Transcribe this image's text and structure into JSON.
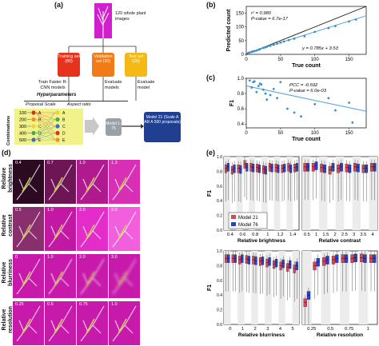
{
  "panels": {
    "a": "(a)",
    "b": "(b)",
    "c": "(c)",
    "d": "(d)",
    "e": "(e)"
  },
  "diagram": {
    "images_text": "120 whole plant images",
    "training": "Training set (80)",
    "validation": "Validation set (20)",
    "test": "Test set (20)",
    "train_label": "Train Faster R-CNN models",
    "evaluate_models": "Evaluate models",
    "evaluate_model": "Evaluate model",
    "hyperparameters": "Hyperparameters",
    "proposal_header": "Proposal  Scale",
    "aspect_header": "Aspect ratio",
    "combinations": "Combinations",
    "proposals": [
      "100",
      "200",
      "300",
      "400",
      "500"
    ],
    "letters": [
      "A",
      "B",
      "C",
      "D",
      "E"
    ],
    "model_box": "Model 1-75",
    "final_model_box": "Model 21 (Scale A AR A 500 proposals)",
    "colors": {
      "training": "#e8331c",
      "validation": "#f07b17",
      "test": "#f5b915",
      "model": "#9aa0a8",
      "final": "#1f3f91",
      "combo_bg": "#f2f28a"
    }
  },
  "chart_b": {
    "xlabel": "True count",
    "ylabel": "Predicted count",
    "annot": [
      "r² = 0.980",
      "P-value = 6.7e-17",
      "y = 0.785x + 3.53"
    ],
    "xticks": [
      "0",
      "50",
      "100",
      "150"
    ],
    "yticks": [
      "0",
      "50",
      "100",
      "150"
    ]
  },
  "chart_c": {
    "xlabel": "True count",
    "ylabel": "F1",
    "annot": [
      "PCC = -0.592",
      "P-value = 6.0e-03"
    ],
    "xticks": [
      "0",
      "50",
      "100",
      "150"
    ],
    "yticks": [
      "0.4",
      "0.6",
      "0.8",
      "1.0"
    ]
  },
  "chart_data": [
    {
      "type": "scatter",
      "panel": "b",
      "xlabel": "True count",
      "ylabel": "Predicted count",
      "xlim": [
        0,
        175
      ],
      "ylim": [
        0,
        175
      ],
      "points": [
        [
          3,
          5
        ],
        [
          5,
          7
        ],
        [
          8,
          9
        ],
        [
          10,
          11
        ],
        [
          12,
          12
        ],
        [
          15,
          14
        ],
        [
          18,
          17
        ],
        [
          20,
          19
        ],
        [
          25,
          24
        ],
        [
          28,
          26
        ],
        [
          30,
          28
        ],
        [
          35,
          31
        ],
        [
          40,
          35
        ],
        [
          45,
          39
        ],
        [
          50,
          43
        ],
        [
          55,
          47
        ],
        [
          62,
          52
        ],
        [
          70,
          57
        ],
        [
          85,
          66
        ],
        [
          100,
          82
        ],
        [
          120,
          96
        ],
        [
          130,
          103
        ],
        [
          150,
          120
        ],
        [
          160,
          127
        ]
      ],
      "fit": {
        "slope": 0.785,
        "intercept": 3.53
      }
    },
    {
      "type": "scatter",
      "panel": "c",
      "xlabel": "True count",
      "ylabel": "F1",
      "xlim": [
        0,
        175
      ],
      "ylim": [
        0.35,
        1.0
      ],
      "points": [
        [
          5,
          0.97
        ],
        [
          8,
          0.88
        ],
        [
          10,
          0.95
        ],
        [
          12,
          0.96
        ],
        [
          15,
          0.82
        ],
        [
          18,
          0.9
        ],
        [
          20,
          0.93
        ],
        [
          22,
          0.92
        ],
        [
          25,
          0.85
        ],
        [
          28,
          0.8
        ],
        [
          30,
          0.72
        ],
        [
          35,
          0.78
        ],
        [
          40,
          0.86
        ],
        [
          45,
          0.74
        ],
        [
          50,
          0.95
        ],
        [
          60,
          0.6
        ],
        [
          70,
          0.55
        ],
        [
          80,
          0.5
        ],
        [
          100,
          0.66
        ],
        [
          120,
          0.74
        ],
        [
          130,
          0.58
        ],
        [
          150,
          0.68
        ],
        [
          155,
          0.42
        ]
      ],
      "fit": {
        "slope": -0.0019,
        "intercept": 0.9
      }
    },
    {
      "type": "box",
      "panel": "e1",
      "xlabel": "Relative brightness",
      "categories": [
        "0.4",
        "0.6",
        "0.8",
        "1",
        "1.2",
        "1.4"
      ],
      "ylim": [
        0,
        1
      ],
      "series": [
        {
          "name": "Model 21",
          "color": "#e04154"
        },
        {
          "name": "Model 76",
          "color": "#2b3fc7"
        }
      ],
      "medians": [
        [
          0.84,
          0.86
        ],
        [
          0.82,
          0.84
        ],
        [
          0.84,
          0.83
        ],
        [
          0.9,
          0.86
        ],
        [
          0.86,
          0.85
        ],
        [
          0.85,
          0.84
        ],
        [
          0.83,
          0.82
        ],
        [
          0.86,
          0.85
        ],
        [
          0.85,
          0.84
        ],
        [
          0.84,
          0.85
        ],
        [
          0.86,
          0.84
        ],
        [
          0.85,
          0.86
        ]
      ]
    },
    {
      "type": "box",
      "panel": "e2",
      "xlabel": "Relative contrast",
      "categories": [
        "0.5",
        "1",
        "1.5",
        "2",
        "2.5",
        "3",
        "3.5",
        "4"
      ],
      "ylim": [
        0,
        1
      ],
      "medians": [
        [
          0.86,
          0.86
        ],
        [
          0.86,
          0.88
        ],
        [
          0.85,
          0.84
        ],
        [
          0.82,
          0.86
        ],
        [
          0.84,
          0.86
        ],
        [
          0.85,
          0.84
        ],
        [
          0.86,
          0.85
        ],
        [
          0.84,
          0.84
        ],
        [
          0.86,
          0.86
        ]
      ]
    },
    {
      "type": "box",
      "panel": "e3",
      "xlabel": "Relative blurriness",
      "categories": [
        "0",
        "1",
        "2",
        "3",
        "4",
        "5"
      ],
      "ylim": [
        0,
        1
      ],
      "medians": [
        [
          0.9,
          0.9
        ],
        [
          0.9,
          0.9
        ],
        [
          0.88,
          0.9
        ],
        [
          0.89,
          0.88
        ],
        [
          0.88,
          0.87
        ],
        [
          0.86,
          0.87
        ],
        [
          0.84,
          0.86
        ],
        [
          0.82,
          0.84
        ],
        [
          0.8,
          0.83
        ],
        [
          0.78,
          0.82
        ],
        [
          0.76,
          0.8
        ]
      ]
    },
    {
      "type": "box",
      "panel": "e4",
      "xlabel": "Relative resolution",
      "categories": [
        "0.25",
        "0.5",
        "0.75",
        "1"
      ],
      "ylim": [
        0,
        1
      ],
      "medians": [
        [
          0.3,
          0.4
        ],
        [
          0.8,
          0.85
        ],
        [
          0.86,
          0.88
        ],
        [
          0.88,
          0.9
        ],
        [
          0.9,
          0.9
        ],
        [
          0.9,
          0.91
        ],
        [
          0.91,
          0.9
        ],
        [
          0.9,
          0.9
        ]
      ]
    }
  ],
  "legend": {
    "m21": "Model 21",
    "m76": "Model 76",
    "c21": "#e04154",
    "c76": "#2b3fc7"
  },
  "e_ylabel": "F1",
  "e_yticks": [
    "0.0",
    "0.2",
    "0.4",
    "0.6",
    "0.8",
    "1.0"
  ],
  "d": {
    "rows": [
      "Relative brightness",
      "Relative contrast",
      "Relative blurriness",
      "Relative resolution"
    ],
    "values": [
      [
        "0.4",
        "0.7",
        "1.0",
        "1.3"
      ],
      [
        "0.5",
        "1.0",
        "2.0",
        "3.0"
      ],
      [
        "0",
        "1.0",
        "2.0",
        "3.0"
      ],
      [
        "0.25",
        "0.5",
        "0.75",
        "1.0"
      ]
    ]
  }
}
